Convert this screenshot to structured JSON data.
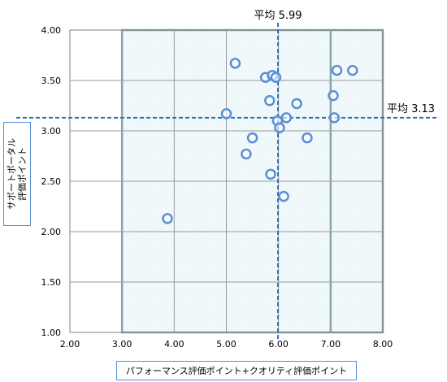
{
  "chart_data": {
    "type": "scatter",
    "xlabel": "パフォーマンス評価ポイント+クオリティ評価ポイント",
    "ylabel": "サポートポータル\n評価ポイント",
    "xlim": [
      2.0,
      8.0
    ],
    "ylim": [
      1.0,
      4.0
    ],
    "x_ticks": [
      "2.00",
      "3.00",
      "4.00",
      "5.00",
      "6.00",
      "7.00",
      "8.00"
    ],
    "y_ticks": [
      "1.00",
      "1.50",
      "2.00",
      "2.50",
      "3.00",
      "3.50",
      "4.00"
    ],
    "grid": true,
    "shaded_x_range": [
      3.0,
      7.0
    ],
    "shaded_x_range_2": [
      7.0,
      8.0
    ],
    "points": [
      {
        "x": 3.87,
        "y": 2.13
      },
      {
        "x": 5.0,
        "y": 3.17
      },
      {
        "x": 5.17,
        "y": 3.67
      },
      {
        "x": 5.38,
        "y": 2.77
      },
      {
        "x": 5.5,
        "y": 2.93
      },
      {
        "x": 5.75,
        "y": 3.53
      },
      {
        "x": 5.83,
        "y": 3.3
      },
      {
        "x": 5.85,
        "y": 2.57
      },
      {
        "x": 5.88,
        "y": 3.55
      },
      {
        "x": 5.95,
        "y": 3.53
      },
      {
        "x": 5.98,
        "y": 3.1
      },
      {
        "x": 6.02,
        "y": 3.03
      },
      {
        "x": 6.1,
        "y": 2.35
      },
      {
        "x": 6.15,
        "y": 3.13
      },
      {
        "x": 6.35,
        "y": 3.27
      },
      {
        "x": 6.55,
        "y": 2.93
      },
      {
        "x": 7.05,
        "y": 3.35
      },
      {
        "x": 7.07,
        "y": 3.13
      },
      {
        "x": 7.12,
        "y": 3.6
      },
      {
        "x": 7.42,
        "y": 3.6
      }
    ],
    "annotations": {
      "x_mean": {
        "value": 5.99,
        "label": "平均 5.99"
      },
      "y_mean": {
        "value": 3.13,
        "label": "平均 3.13"
      }
    },
    "colors": {
      "marker": "#5b8ed6",
      "mean_line": "#2f6fbd",
      "shade": "#eef7fa",
      "band_border": "#8aa7a7",
      "grid": "#9a9a9a"
    }
  }
}
